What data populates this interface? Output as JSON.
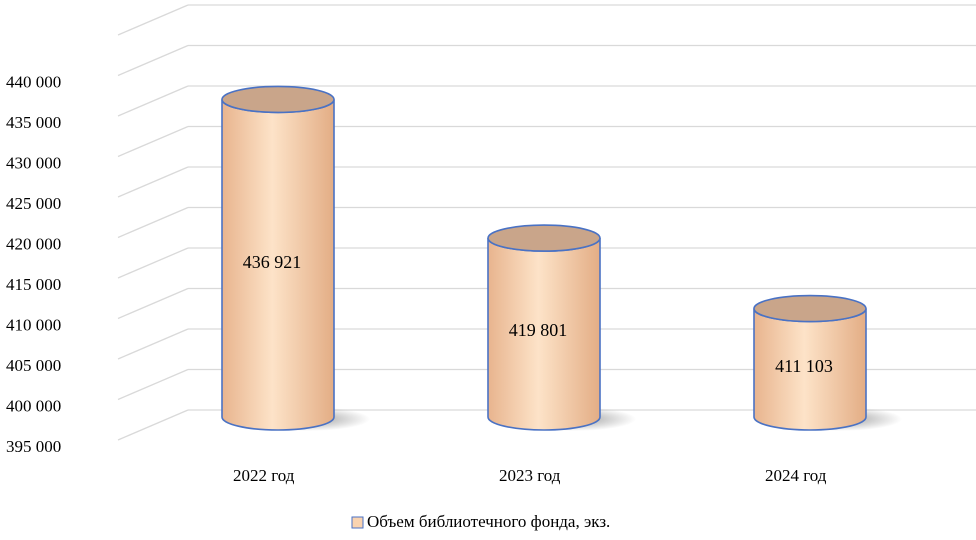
{
  "chart_data": {
    "type": "bar",
    "style": "3d-cylinder",
    "categories": [
      "2022 год",
      "2023 год",
      "2024 год"
    ],
    "series": [
      {
        "name": "Объем библиотечного фонда, экз.",
        "values": [
          436921,
          419801,
          411103
        ],
        "value_labels": [
          "436 921",
          "419 801",
          "411 103"
        ]
      }
    ],
    "ylim": [
      395000,
      440000
    ],
    "yticks": [
      395000,
      400000,
      405000,
      410000,
      415000,
      420000,
      425000,
      430000,
      435000,
      440000
    ],
    "ytick_labels": [
      "395 000",
      "400 000",
      "405 000",
      "410 000",
      "415 000",
      "420 000",
      "425 000",
      "430 000",
      "435 000",
      "440 000"
    ],
    "grid": true,
    "legend_position": "bottom",
    "colors": {
      "bar_fill": "#f9d3b0",
      "bar_top": "#c9a58a",
      "bar_stroke": "#4a72c4",
      "grid": "#d9d9d9"
    }
  }
}
